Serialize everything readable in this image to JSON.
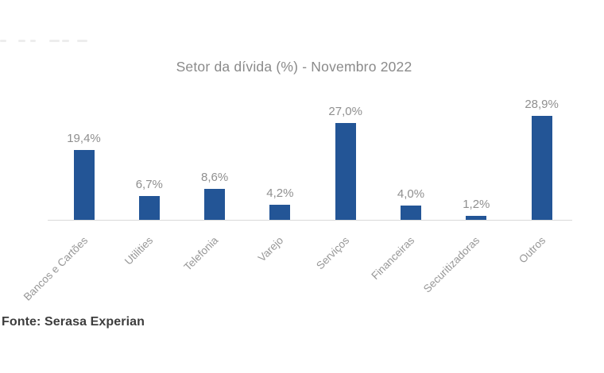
{
  "chart_data": {
    "type": "bar",
    "title": "Setor da dívida (%) - Novembro 2022",
    "categories": [
      "Bancos e Cartões",
      "Utilities",
      "Telefonia",
      "Varejo",
      "Serviços",
      "Financeiras",
      "Securitizadoras",
      "Outros"
    ],
    "values": [
      19.4,
      6.7,
      8.6,
      4.2,
      27.0,
      4.0,
      1.2,
      28.9
    ],
    "value_labels": [
      "19,4%",
      "6,7%",
      "8,6%",
      "4,2%",
      "27,0%",
      "4,0%",
      "1,2%",
      "28,9%"
    ],
    "xlabel": "",
    "ylabel": "",
    "ylim": [
      0,
      30
    ],
    "grid": false,
    "legend": "none",
    "bar_color": "#235596",
    "label_color": "#8f8f8f",
    "axis_color": "#d9d9d9",
    "title_color": "#8a8a8a"
  },
  "source_label": "Fonte: Serasa Experian",
  "artifact": {
    "color": "#ededed",
    "y": 50,
    "dashes": [
      {
        "x": 0,
        "w": 8
      },
      {
        "x": 23,
        "w": 9
      },
      {
        "x": 38,
        "w": 7
      },
      {
        "x": 62,
        "w": 13
      },
      {
        "x": 78,
        "w": 9
      },
      {
        "x": 97,
        "w": 13
      }
    ]
  }
}
